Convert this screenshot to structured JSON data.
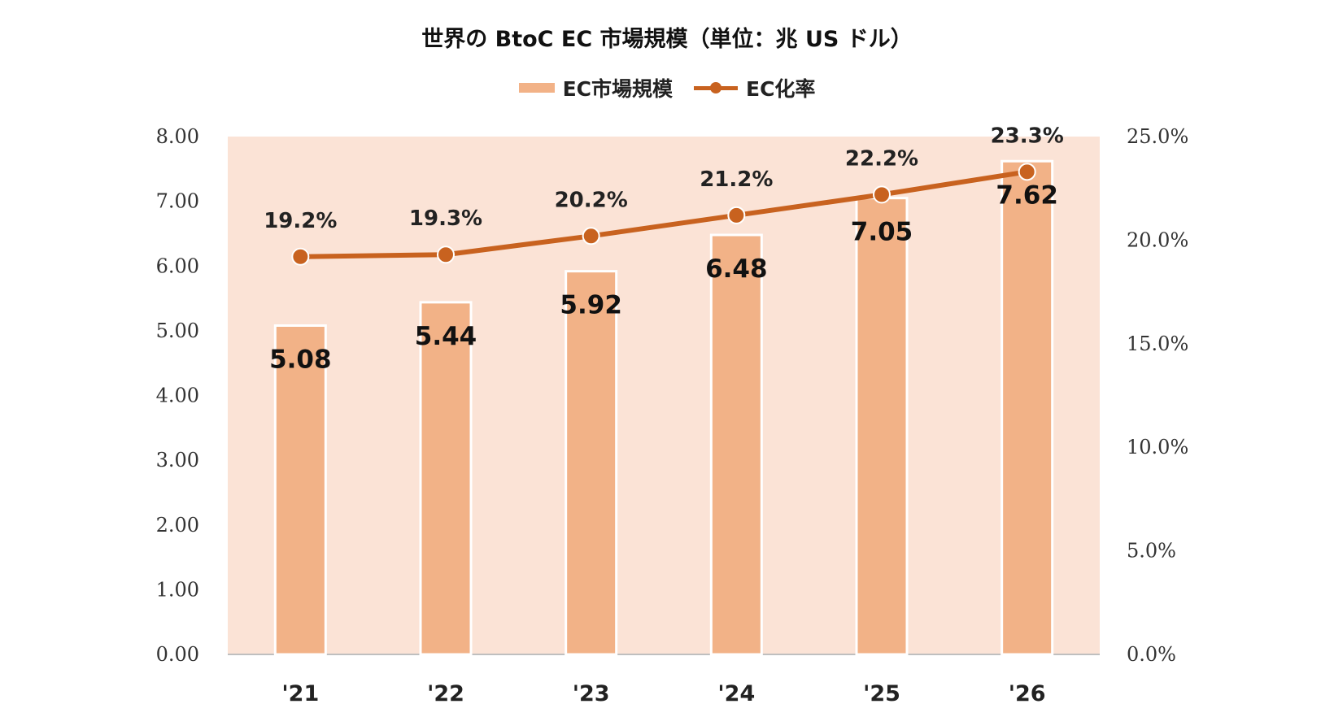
{
  "chart_data": {
    "type": "bar",
    "title": "世界の BtoC EC 市場規模（単位：兆 US ドル）",
    "categories": [
      "'21",
      "'22",
      "'23",
      "'24",
      "'25",
      "'26"
    ],
    "series": [
      {
        "name": "EC市場規模",
        "type": "bar",
        "axis": "left",
        "values": [
          5.08,
          5.44,
          5.92,
          6.48,
          7.05,
          7.62
        ],
        "labels": [
          "5.08",
          "5.44",
          "5.92",
          "6.48",
          "7.05",
          "7.62"
        ],
        "color": "#f2b287"
      },
      {
        "name": "EC化率",
        "type": "line",
        "axis": "right",
        "values": [
          19.2,
          19.3,
          20.2,
          21.2,
          22.2,
          23.3
        ],
        "labels": [
          "19.2%",
          "19.3%",
          "20.2%",
          "21.2%",
          "22.2%",
          "23.3%"
        ],
        "color": "#c8621f"
      }
    ],
    "y_left": {
      "min": 0,
      "max": 8,
      "ticks": [
        0,
        1,
        2,
        3,
        4,
        5,
        6,
        7,
        8
      ],
      "tick_labels": [
        "0.00",
        "1.00",
        "2.00",
        "3.00",
        "4.00",
        "5.00",
        "6.00",
        "7.00",
        "8.00"
      ]
    },
    "y_right": {
      "min": 0,
      "max": 25,
      "ticks": [
        0,
        5,
        10,
        15,
        20,
        25
      ],
      "tick_labels": [
        "0.0%",
        "5.0%",
        "10.0%",
        "15.0%",
        "20.0%",
        "25.0%"
      ]
    },
    "legend_position": "top-center",
    "plot_background": "#fbe3d6",
    "grid": false
  }
}
